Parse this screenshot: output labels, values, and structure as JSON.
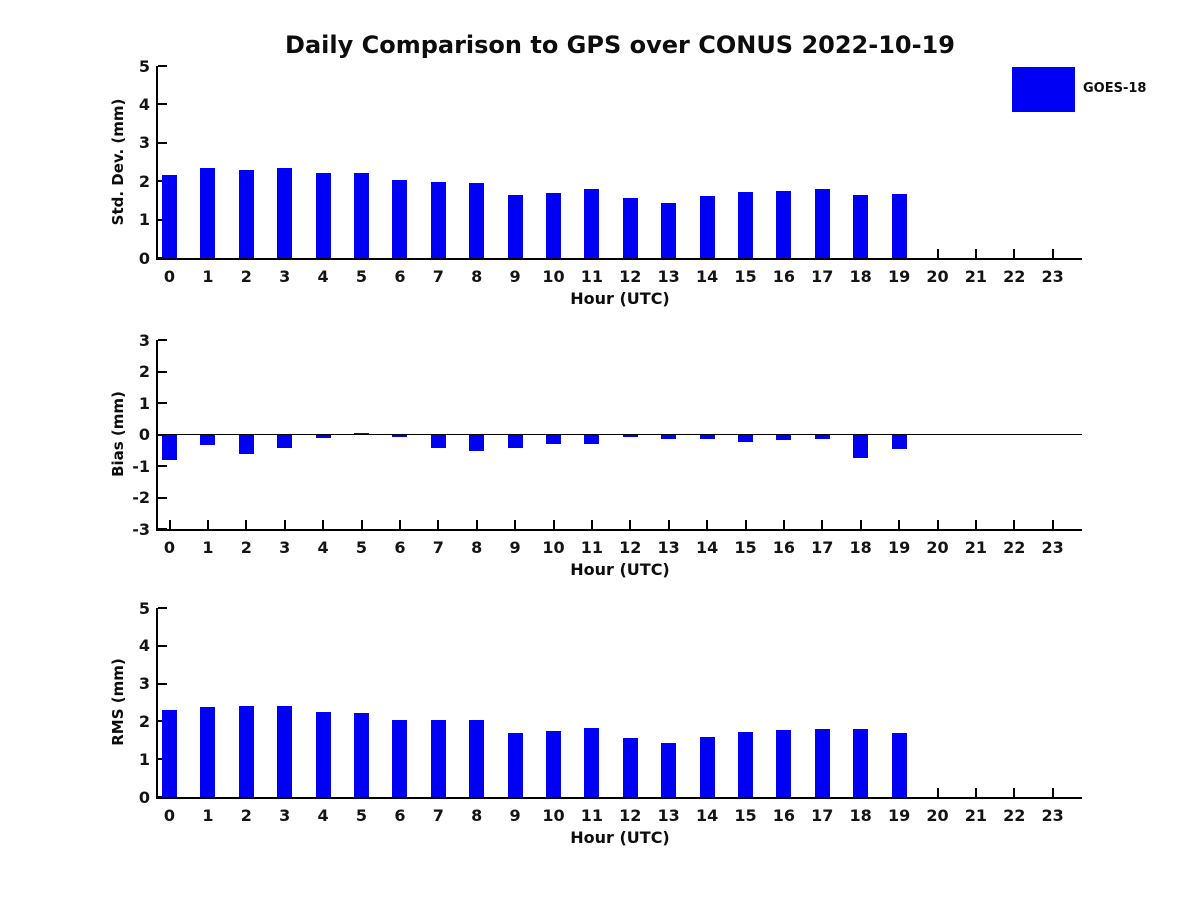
{
  "title": "Daily Comparison to GPS over CONUS 2022-10-19",
  "legend": {
    "label": "GOES-18",
    "color": "#0000F5"
  },
  "chart_data": [
    {
      "type": "bar",
      "ylabel": "Std. Dev. (mm)",
      "xlabel": "Hour (UTC)",
      "ylim": [
        0,
        5
      ],
      "yticks": [
        0,
        1,
        2,
        3,
        4,
        5
      ],
      "categories": [
        "0",
        "1",
        "2",
        "3",
        "4",
        "5",
        "6",
        "7",
        "8",
        "9",
        "10",
        "11",
        "12",
        "13",
        "14",
        "15",
        "16",
        "17",
        "18",
        "19",
        "20",
        "21",
        "22",
        "23"
      ],
      "legend_position": "upper-right-outside",
      "grid": false,
      "series": [
        {
          "name": "GOES-18",
          "color": "#0000F5",
          "values": [
            2.15,
            2.35,
            2.3,
            2.35,
            2.22,
            2.22,
            2.04,
            1.98,
            1.95,
            1.64,
            1.7,
            1.8,
            1.55,
            1.42,
            1.61,
            1.73,
            1.75,
            1.79,
            1.64,
            1.67,
            null,
            null,
            null,
            null
          ]
        }
      ]
    },
    {
      "type": "bar",
      "ylabel": "Bias (mm)",
      "xlabel": "Hour (UTC)",
      "ylim": [
        -3,
        3
      ],
      "yticks": [
        -3,
        -2,
        -1,
        0,
        1,
        2,
        3
      ],
      "categories": [
        "0",
        "1",
        "2",
        "3",
        "4",
        "5",
        "6",
        "7",
        "8",
        "9",
        "10",
        "11",
        "12",
        "13",
        "14",
        "15",
        "16",
        "17",
        "18",
        "19",
        "20",
        "21",
        "22",
        "23"
      ],
      "grid": false,
      "zero_line": true,
      "series": [
        {
          "name": "GOES-18",
          "color": "#0000F5",
          "values": [
            -0.8,
            -0.32,
            -0.62,
            -0.42,
            -0.12,
            0.05,
            -0.07,
            -0.43,
            -0.52,
            -0.43,
            -0.3,
            -0.3,
            -0.07,
            -0.15,
            -0.13,
            -0.25,
            -0.18,
            -0.15,
            -0.75,
            -0.46,
            null,
            null,
            null,
            null
          ]
        }
      ]
    },
    {
      "type": "bar",
      "ylabel": "RMS (mm)",
      "xlabel": "Hour (UTC)",
      "ylim": [
        0,
        5
      ],
      "yticks": [
        0,
        1,
        2,
        3,
        4,
        5
      ],
      "categories": [
        "0",
        "1",
        "2",
        "3",
        "4",
        "5",
        "6",
        "7",
        "8",
        "9",
        "10",
        "11",
        "12",
        "13",
        "14",
        "15",
        "16",
        "17",
        "18",
        "19",
        "20",
        "21",
        "22",
        "23"
      ],
      "grid": false,
      "series": [
        {
          "name": "GOES-18",
          "color": "#0000F5",
          "values": [
            2.3,
            2.38,
            2.4,
            2.4,
            2.25,
            2.22,
            2.04,
            2.04,
            2.04,
            1.69,
            1.75,
            1.83,
            1.55,
            1.42,
            1.58,
            1.72,
            1.76,
            1.79,
            1.79,
            1.7,
            null,
            null,
            null,
            null
          ]
        }
      ]
    }
  ]
}
